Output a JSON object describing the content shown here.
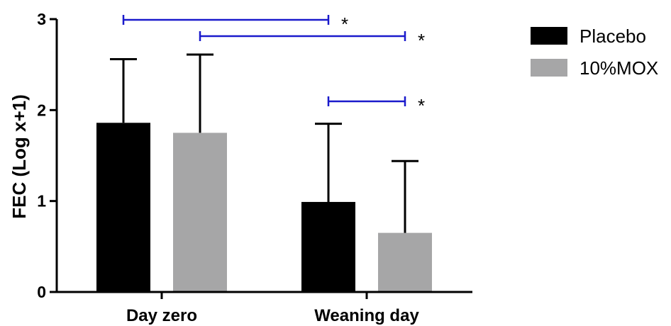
{
  "chart_data": {
    "type": "bar",
    "title": "",
    "xlabel": "",
    "ylabel": "FEC (Log x+1)",
    "ylim": [
      0,
      3
    ],
    "yticks": [
      "0",
      "1",
      "2",
      "3"
    ],
    "categories": [
      "Day zero",
      "Weaning day"
    ],
    "series": [
      {
        "name": "Placebo",
        "color": "#000000",
        "values": [
          1.86,
          0.99
        ],
        "error_upper": [
          2.56,
          1.85
        ]
      },
      {
        "name": "10%MOX",
        "color": "#a6a6a7",
        "values": [
          1.75,
          0.65
        ],
        "error_upper": [
          2.61,
          1.44
        ]
      }
    ],
    "significance": [
      {
        "label": "*",
        "color": "#1a1acc",
        "from": "Placebo / Day zero",
        "to": "Placebo / Weaning day"
      },
      {
        "label": "*",
        "color": "#1a1acc",
        "from": "10%MOX / Day zero",
        "to": "10%MOX / Weaning day"
      },
      {
        "label": "*",
        "color": "#1a1acc",
        "from": "Placebo / Weaning day",
        "to": "10%MOX / Weaning day"
      }
    ],
    "legend_position": "top-right",
    "grid": false
  }
}
